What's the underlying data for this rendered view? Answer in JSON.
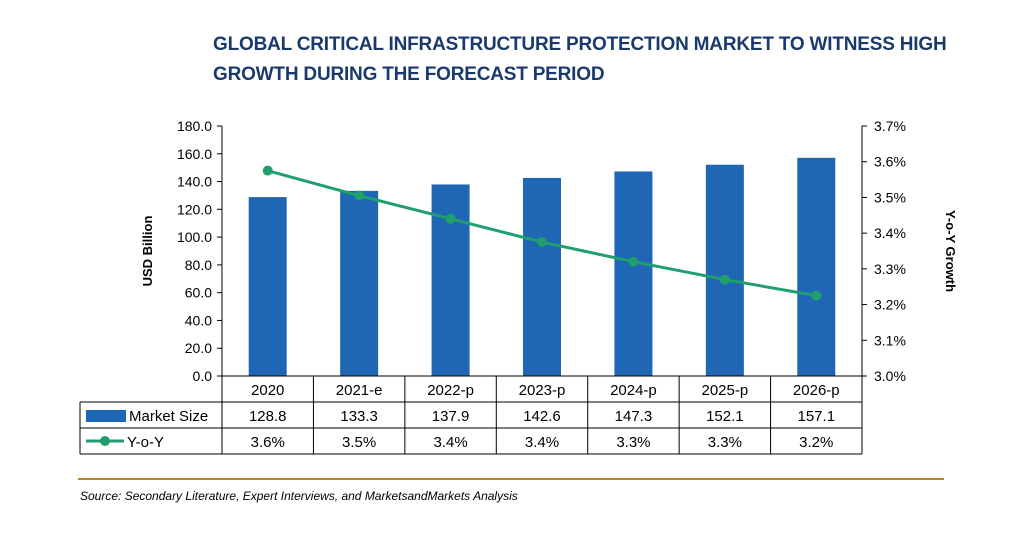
{
  "title": "GLOBAL CRITICAL INFRASTRUCTURE PROTECTION MARKET TO WITNESS HIGH GROWTH DURING THE FORECAST PERIOD",
  "source": "Source: Secondary Literature, Expert Interviews, and MarketsandMarkets Analysis",
  "colors": {
    "bar": "#1f66b5",
    "line": "#1f9e6e",
    "title": "#1a3a6e",
    "rule": "#b38a1a"
  },
  "chart_data": {
    "type": "bar",
    "categories": [
      "2020",
      "2021-e",
      "2022-p",
      "2023-p",
      "2024-p",
      "2025-p",
      "2026-p"
    ],
    "series": [
      {
        "name": "Market Size",
        "type": "bar",
        "axis": "left",
        "values": [
          128.8,
          133.3,
          137.9,
          142.6,
          147.3,
          152.1,
          157.1
        ],
        "table_labels": [
          "128.8",
          "133.3",
          "137.9",
          "142.6",
          "147.3",
          "152.1",
          "157.1"
        ]
      },
      {
        "name": "Y-o-Y",
        "type": "line",
        "axis": "right",
        "values": [
          3.575,
          3.505,
          3.44,
          3.375,
          3.32,
          3.27,
          3.225
        ],
        "table_labels": [
          "3.6%",
          "3.5%",
          "3.4%",
          "3.4%",
          "3.3%",
          "3.3%",
          "3.2%"
        ]
      }
    ],
    "ylabel": "USD Billion",
    "y2label": "Y-o-Y Growth",
    "ylim": [
      0,
      180
    ],
    "y2lim": [
      3.0,
      3.7
    ],
    "yticks": [
      "0.0",
      "20.0",
      "40.0",
      "60.0",
      "80.0",
      "100.0",
      "120.0",
      "140.0",
      "160.0",
      "180.0"
    ],
    "y2ticks": [
      "3.0%",
      "3.1%",
      "3.2%",
      "3.3%",
      "3.4%",
      "3.5%",
      "3.6%",
      "3.7%"
    ],
    "grid": false,
    "data_table": true
  }
}
